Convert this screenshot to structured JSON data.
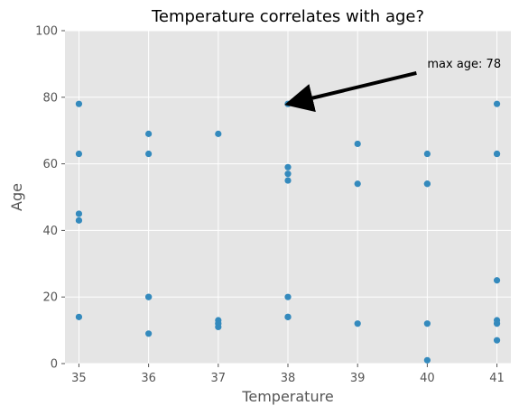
{
  "chart_data": {
    "type": "scatter",
    "title": "Temperature correlates with age?",
    "xlabel": "Temperature",
    "ylabel": "Age",
    "xlim": [
      34.8,
      41.2
    ],
    "ylim": [
      0,
      100
    ],
    "xticks": [
      35,
      36,
      37,
      38,
      39,
      40,
      41
    ],
    "yticks": [
      0,
      20,
      40,
      60,
      80,
      100
    ],
    "grid": true,
    "colors": {
      "background": "#e5e5e5",
      "grid": "#ffffff",
      "point": "#348abd",
      "arrow": "#000000"
    },
    "points": [
      {
        "x": 35,
        "y": 78
      },
      {
        "x": 35,
        "y": 63
      },
      {
        "x": 35,
        "y": 45
      },
      {
        "x": 35,
        "y": 43
      },
      {
        "x": 35,
        "y": 14
      },
      {
        "x": 36,
        "y": 69
      },
      {
        "x": 36,
        "y": 63
      },
      {
        "x": 36,
        "y": 20
      },
      {
        "x": 36,
        "y": 20
      },
      {
        "x": 36,
        "y": 9
      },
      {
        "x": 37,
        "y": 69
      },
      {
        "x": 37,
        "y": 13
      },
      {
        "x": 37,
        "y": 12
      },
      {
        "x": 37,
        "y": 11
      },
      {
        "x": 38,
        "y": 78
      },
      {
        "x": 38,
        "y": 59
      },
      {
        "x": 38,
        "y": 57
      },
      {
        "x": 38,
        "y": 55
      },
      {
        "x": 38,
        "y": 20
      },
      {
        "x": 38,
        "y": 14
      },
      {
        "x": 38,
        "y": 14
      },
      {
        "x": 39,
        "y": 66
      },
      {
        "x": 39,
        "y": 54
      },
      {
        "x": 39,
        "y": 12
      },
      {
        "x": 40,
        "y": 63
      },
      {
        "x": 40,
        "y": 54
      },
      {
        "x": 40,
        "y": 54
      },
      {
        "x": 40,
        "y": 12
      },
      {
        "x": 40,
        "y": 1
      },
      {
        "x": 41,
        "y": 78
      },
      {
        "x": 41,
        "y": 63
      },
      {
        "x": 41,
        "y": 63
      },
      {
        "x": 41,
        "y": 25
      },
      {
        "x": 41,
        "y": 13
      },
      {
        "x": 41,
        "y": 12
      },
      {
        "x": 41,
        "y": 7
      }
    ],
    "annotation": {
      "text": "max age: 78",
      "point": {
        "x": 38,
        "y": 78
      },
      "text_position": {
        "x": 40,
        "y": 90
      }
    }
  }
}
